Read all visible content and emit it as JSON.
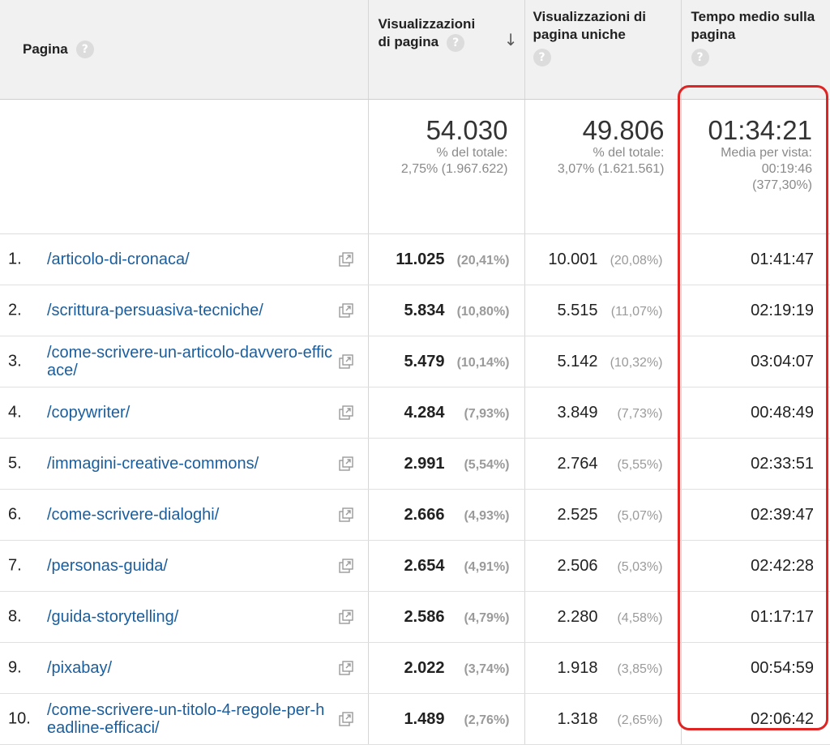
{
  "header": {
    "page": "Pagina",
    "views_line1": "Visualizzazioni",
    "views_line2": "di pagina",
    "unique": "Visualizzazioni di pagina uniche",
    "time": "Tempo medio sulla pagina",
    "help_glyph": "?",
    "sort_glyph": "↓"
  },
  "totals": {
    "views": "54.030",
    "views_sub1": "% del totale:",
    "views_sub2": "2,75% (1.967.622)",
    "unique": "49.806",
    "unique_sub1": "% del totale:",
    "unique_sub2": "3,07% (1.621.561)",
    "time": "01:34:21",
    "time_sub1": "Media per vista:",
    "time_sub2": "00:19:46",
    "time_sub3": "(377,30%)"
  },
  "rows": [
    {
      "rank": "1.",
      "page": "/articolo-di-cronaca/",
      "views": "11.025",
      "views_pct": "(20,41%)",
      "unique": "10.001",
      "unique_pct": "(20,08%)",
      "time": "01:41:47"
    },
    {
      "rank": "2.",
      "page": "/scrittura-persuasiva-tecniche/",
      "views": "5.834",
      "views_pct": "(10,80%)",
      "unique": "5.515",
      "unique_pct": "(11,07%)",
      "time": "02:19:19"
    },
    {
      "rank": "3.",
      "page": "/come-scrivere-un-articolo-davvero-efficace/",
      "views": "5.479",
      "views_pct": "(10,14%)",
      "unique": "5.142",
      "unique_pct": "(10,32%)",
      "time": "03:04:07"
    },
    {
      "rank": "4.",
      "page": "/copywriter/",
      "views": "4.284",
      "views_pct": "(7,93%)",
      "unique": "3.849",
      "unique_pct": "(7,73%)",
      "time": "00:48:49"
    },
    {
      "rank": "5.",
      "page": "/immagini-creative-commons/",
      "views": "2.991",
      "views_pct": "(5,54%)",
      "unique": "2.764",
      "unique_pct": "(5,55%)",
      "time": "02:33:51"
    },
    {
      "rank": "6.",
      "page": "/come-scrivere-dialoghi/",
      "views": "2.666",
      "views_pct": "(4,93%)",
      "unique": "2.525",
      "unique_pct": "(5,07%)",
      "time": "02:39:47"
    },
    {
      "rank": "7.",
      "page": "/personas-guida/",
      "views": "2.654",
      "views_pct": "(4,91%)",
      "unique": "2.506",
      "unique_pct": "(5,03%)",
      "time": "02:42:28"
    },
    {
      "rank": "8.",
      "page": "/guida-storytelling/",
      "views": "2.586",
      "views_pct": "(4,79%)",
      "unique": "2.280",
      "unique_pct": "(4,58%)",
      "time": "01:17:17"
    },
    {
      "rank": "9.",
      "page": "/pixabay/",
      "views": "2.022",
      "views_pct": "(3,74%)",
      "unique": "1.918",
      "unique_pct": "(3,85%)",
      "time": "00:54:59"
    },
    {
      "rank": "10.",
      "page": "/come-scrivere-un-titolo-4-regole-per-headline-efficaci/",
      "views": "1.489",
      "views_pct": "(2,76%)",
      "unique": "1.318",
      "unique_pct": "(2,65%)",
      "time": "02:06:42"
    }
  ],
  "colors": {
    "link": "#1a5e9e",
    "highlight": "#e02424",
    "header_bg": "#f1f1f1"
  }
}
